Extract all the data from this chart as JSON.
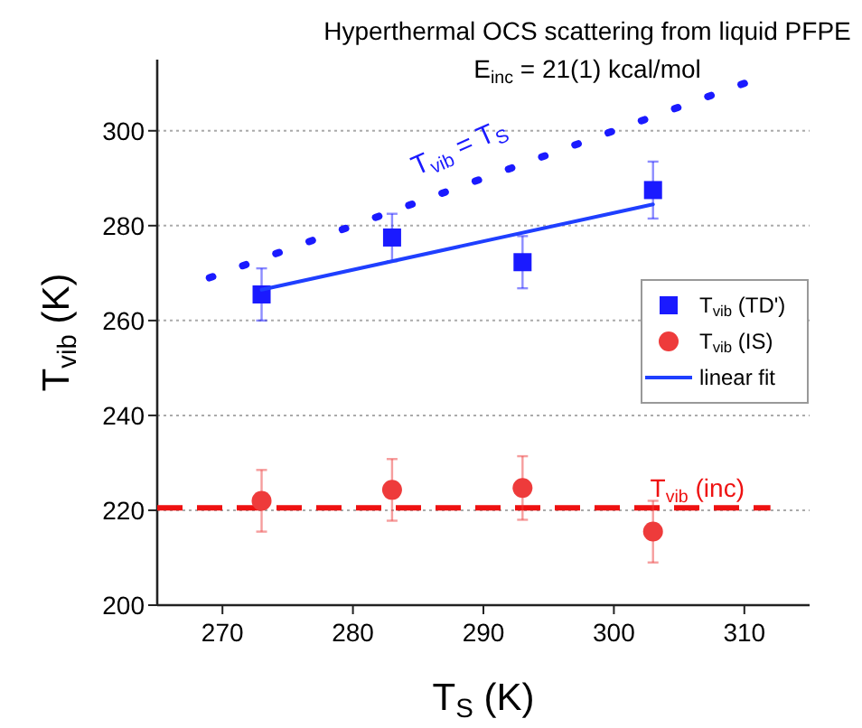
{
  "chart_data": {
    "type": "scatter",
    "title": "Hyperthermal OCS scattering from liquid PFPE",
    "subtitle": "E$_{inc}$ = 21(1) kcal/mol",
    "xlabel": "T$_{S}$ (K)",
    "ylabel": "T$_{vib}$ (K)",
    "xlim": [
      265,
      315
    ],
    "xticks": [
      270,
      280,
      290,
      300,
      310
    ],
    "ylim": [
      200,
      315
    ],
    "yticks": [
      200,
      220,
      240,
      260,
      280,
      300
    ],
    "grid": "y",
    "legend": "right",
    "series": [
      {
        "name": "T$_{vib}$ (TD')",
        "marker": "square",
        "color": "#1a1aff",
        "x": [
          273,
          283,
          293,
          303
        ],
        "values": [
          265.5,
          277.5,
          272.3,
          287.5
        ],
        "errors": [
          5.5,
          5,
          5.5,
          6
        ]
      },
      {
        "name": "T$_{vib}$ (IS)",
        "marker": "circle",
        "color": "#ee3b3b",
        "x": [
          273,
          283,
          293,
          303
        ],
        "values": [
          222,
          224.3,
          224.7,
          215.5
        ],
        "errors": [
          6.5,
          6.5,
          6.7,
          6.5
        ]
      },
      {
        "name": "linear fit",
        "type": "line",
        "line_style": "solid",
        "color": "#1f3fff",
        "x": [
          273,
          303
        ],
        "values": [
          266.5,
          284.5
        ]
      },
      {
        "type": "line",
        "line_style": "dotted",
        "color": "#1a1aff",
        "x": [
          269,
          310
        ],
        "values": [
          269,
          310
        ]
      }
    ],
    "ref_lines": [
      {
        "axis": "y",
        "value": 220.5,
        "label": "T$_{vib}$ (inc)",
        "color": "#ee1111",
        "line_style": "dashed"
      }
    ],
    "annotations": [
      "T$_{vib}$ = T$_{S}$"
    ]
  }
}
